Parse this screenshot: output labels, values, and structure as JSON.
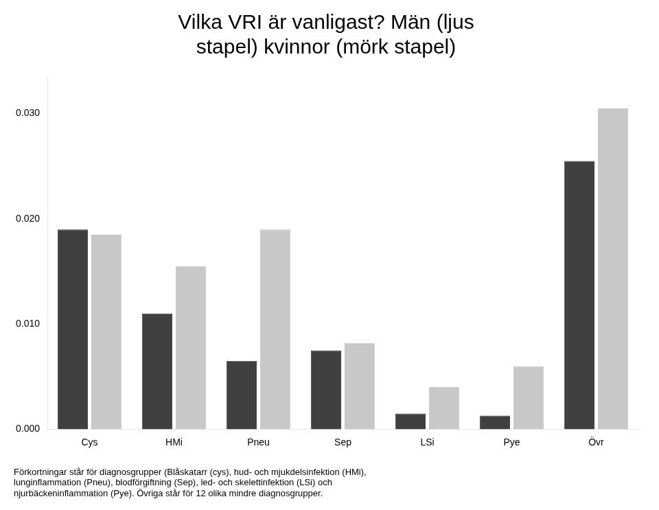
{
  "chart_data": {
    "type": "bar",
    "title": "Vilka VRI är vanligast? Män (ljus\nstapel) kvinnor (mörk stapel)",
    "categories": [
      "Cys",
      "HMi",
      "Pneu",
      "Sep",
      "LSi",
      "Pye",
      "Övr"
    ],
    "series": [
      {
        "color": "#404040",
        "values": [
          0.019,
          0.011,
          0.0065,
          0.0075,
          0.0015,
          0.0013,
          0.0255
        ]
      },
      {
        "color": "#c8c8c8",
        "values": [
          0.0185,
          0.0155,
          0.019,
          0.0082,
          0.004,
          0.006,
          0.0305
        ]
      }
    ],
    "ylim": [
      0,
      0.0335
    ],
    "yticks": [
      {
        "value": 0,
        "label": "0.000"
      },
      {
        "value": 0.01,
        "label": "0.010"
      },
      {
        "value": 0.02,
        "label": "0.020"
      },
      {
        "value": 0.03,
        "label": "0.030"
      }
    ],
    "annotations": [
      "Förkortningar står för diagnosgrupper (Blåskatarr (cys), hud- och mjukdelsinfektion (HMi),\nlunginflammation (Pneu), blodförgiftning (Sep), led- och skelettinfektion (LSi) och\nnjurbäckeninflammation (Pye). Övriga står för 12 olika mindre diagnosgrupper."
    ],
    "grid": false,
    "legend": false
  }
}
